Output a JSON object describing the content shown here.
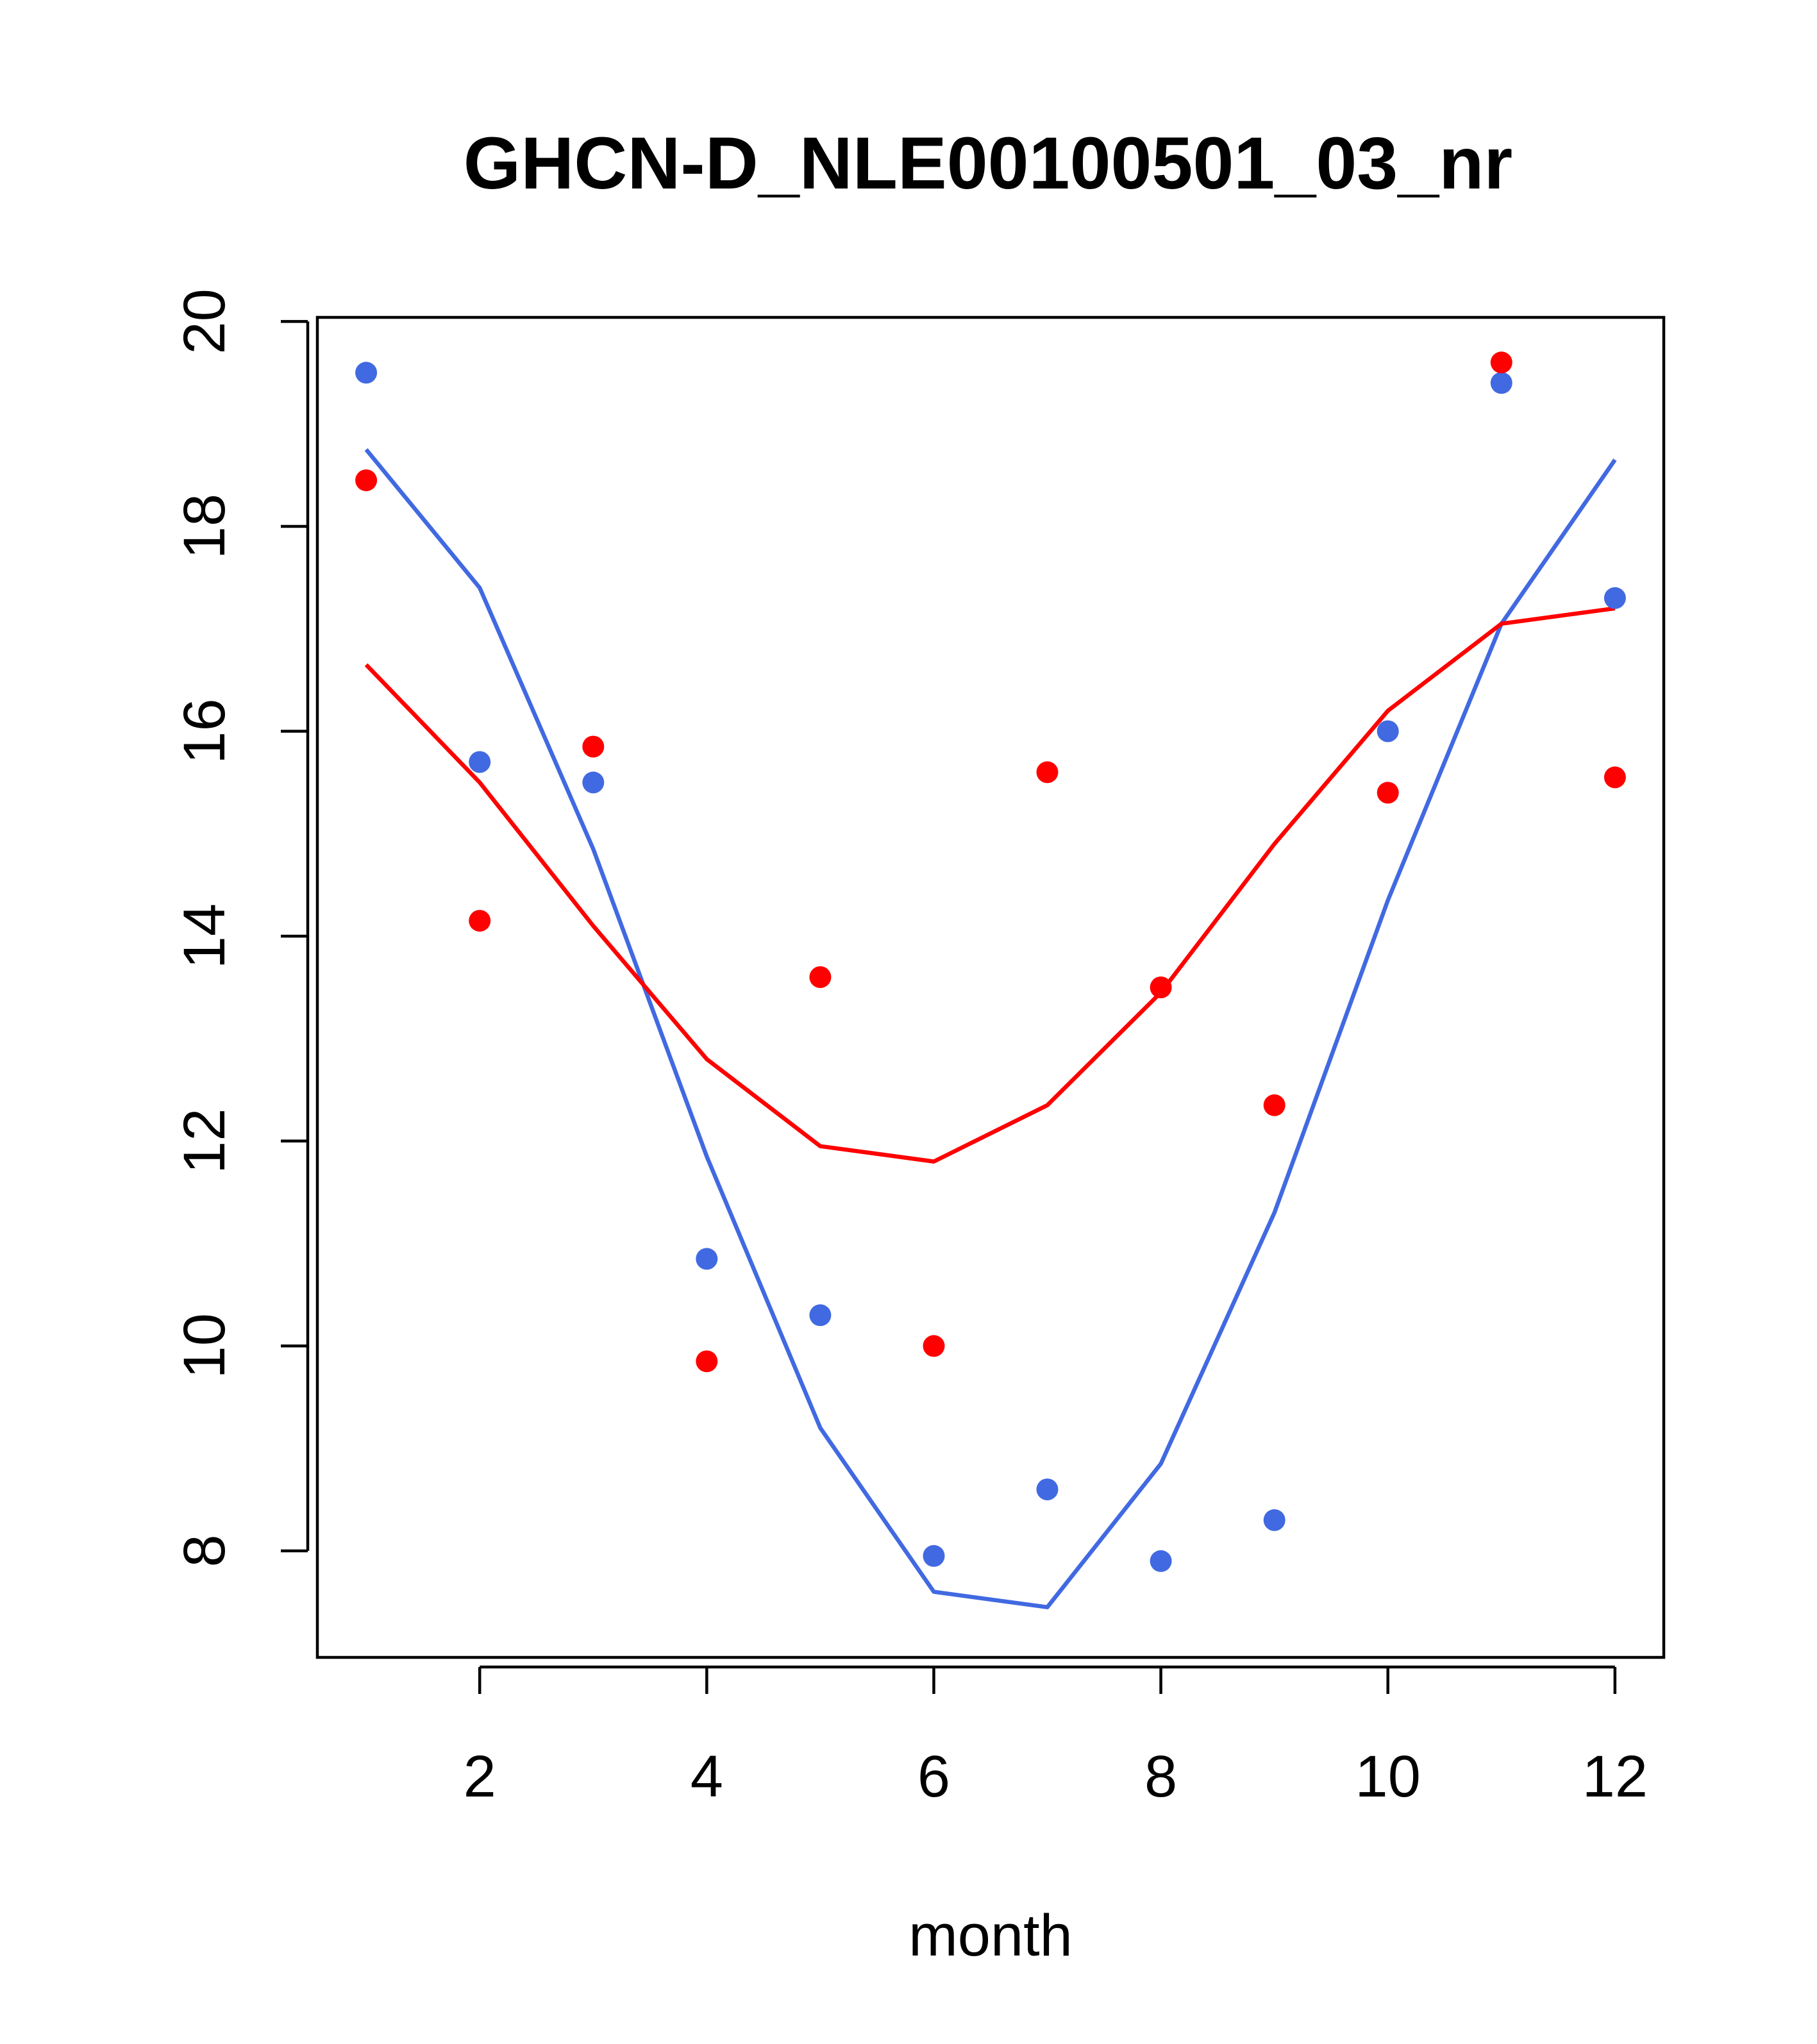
{
  "chart_data": {
    "type": "scatter+line",
    "title": "GHCN-D_NLE00100501_03_nr",
    "xlabel": "month",
    "ylabel": "",
    "xlim": [
      0.57,
      12.43
    ],
    "ylim": [
      6.96,
      20.04
    ],
    "x_ticks": [
      2,
      4,
      6,
      8,
      10,
      12
    ],
    "y_ticks": [
      8,
      10,
      12,
      14,
      16,
      18,
      20
    ],
    "x": [
      1,
      2,
      3,
      4,
      5,
      6,
      7,
      8,
      9,
      10,
      11,
      12
    ],
    "series": [
      {
        "name": "blue points",
        "kind": "points",
        "color": "#4169e1",
        "values": [
          19.5,
          15.7,
          15.5,
          10.85,
          10.3,
          7.95,
          8.6,
          7.9,
          8.3,
          16.0,
          19.4,
          17.3
        ]
      },
      {
        "name": "blue line",
        "kind": "line",
        "color": "#4169e1",
        "values": [
          18.75,
          17.4,
          14.85,
          11.85,
          9.2,
          7.6,
          7.45,
          8.85,
          11.3,
          14.35,
          17.05,
          18.65
        ]
      },
      {
        "name": "red points",
        "kind": "points",
        "color": "#ff0000",
        "values": [
          18.45,
          14.15,
          15.85,
          9.85,
          13.6,
          10.0,
          15.6,
          13.5,
          12.35,
          15.4,
          19.6,
          15.55
        ]
      },
      {
        "name": "red line",
        "kind": "line",
        "color": "#ff0000",
        "values": [
          16.65,
          15.5,
          14.1,
          12.8,
          11.95,
          11.8,
          12.35,
          13.45,
          14.9,
          16.2,
          17.05,
          17.2
        ]
      }
    ]
  }
}
